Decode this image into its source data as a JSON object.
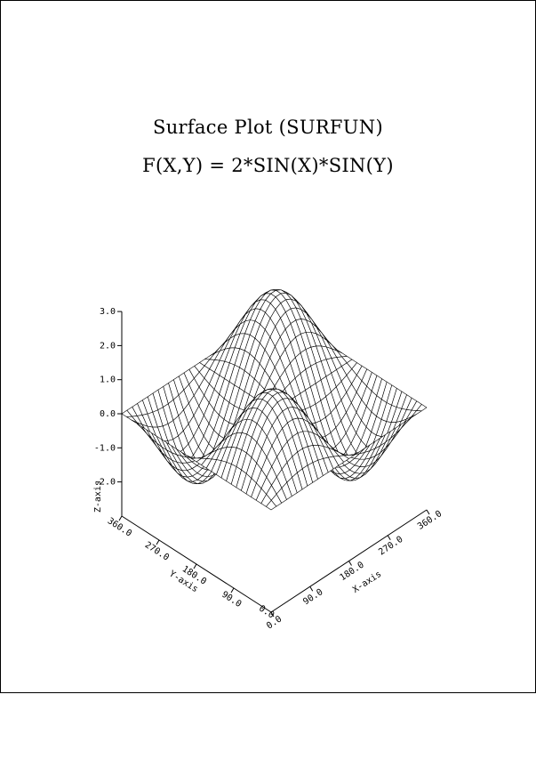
{
  "chart_data": {
    "type": "surface",
    "title": "Surface Plot (SURFUN)",
    "subtitle": "F(X,Y) = 2*SIN(X)*SIN(Y)",
    "function": "2*sin(x)*sin(y)",
    "xlabel": "X-axis",
    "ylabel": "Y-axis",
    "zlabel": "Z-axis",
    "xlim": [
      0,
      360
    ],
    "ylim": [
      0,
      360
    ],
    "zlim": [
      -3,
      3
    ],
    "x_ticks": [
      0,
      90,
      180,
      270,
      360
    ],
    "y_ticks": [
      90,
      180,
      270,
      360
    ],
    "z_ticks": [
      -2,
      -1,
      0,
      1,
      2,
      3
    ],
    "x_tick_labels": [
      "0.0",
      "90.0",
      "180.0",
      "270.0",
      "360.0"
    ],
    "y_tick_labels": [
      "90.0",
      "180.0",
      "270.0",
      "360.0"
    ],
    "z_tick_labels": [
      "-2.0",
      "-1.0",
      "0.0",
      "1.0",
      "2.0",
      "3.0"
    ],
    "grid_steps": 30,
    "colors": {
      "mesh": "#000000",
      "surface_fill": "#ffffff"
    }
  }
}
